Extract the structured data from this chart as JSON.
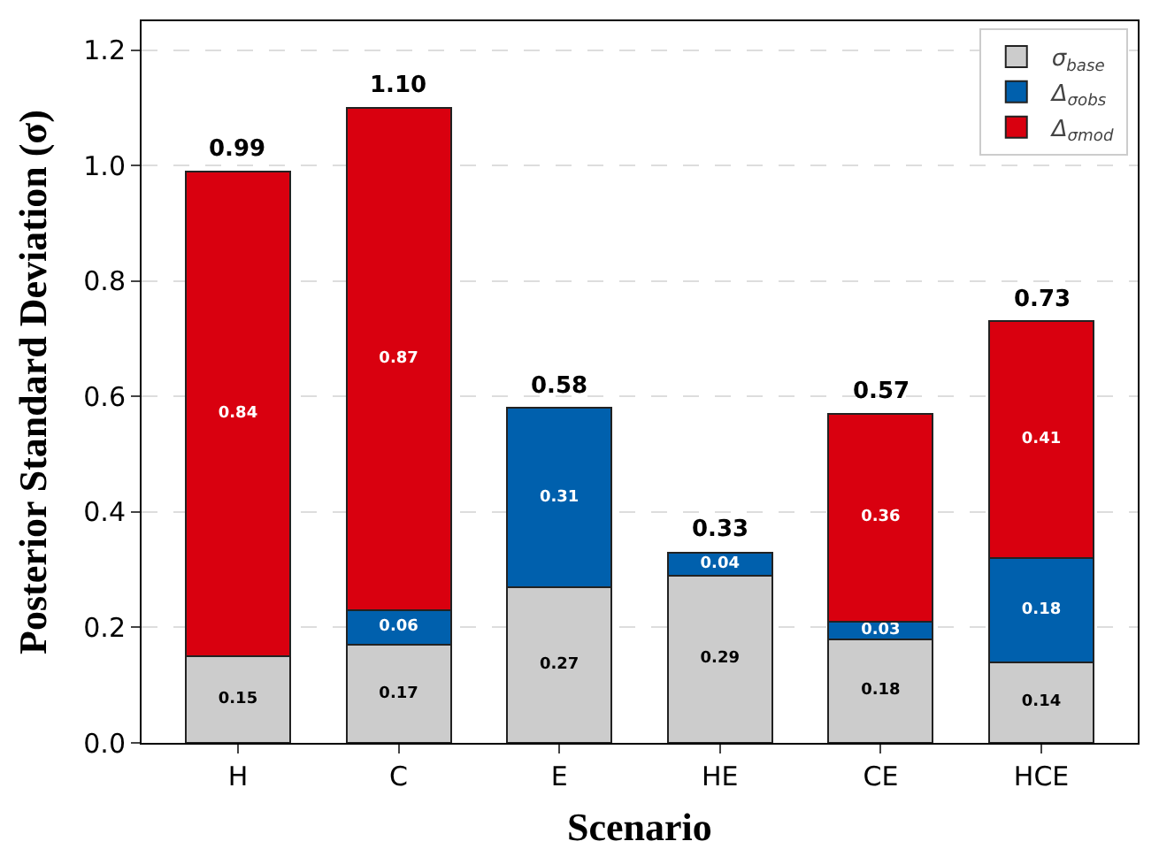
{
  "chart_data": {
    "type": "bar",
    "stacked": true,
    "xlabel": "Scenario",
    "ylabel": "Posterior Standard Deviation (σ)",
    "categories": [
      "H",
      "C",
      "E",
      "HE",
      "CE",
      "HCE"
    ],
    "series": [
      {
        "name": "σ$_{base}$",
        "color": "#cccccc",
        "values": [
          0.15,
          0.17,
          0.27,
          0.29,
          0.18,
          0.14
        ]
      },
      {
        "name": "Δ$_{σobs}$",
        "color": "#0060ad",
        "values": [
          null,
          0.06,
          0.31,
          0.04,
          0.03,
          0.18
        ]
      },
      {
        "name": "Δ$_{σmod}$",
        "color": "#d9000f",
        "values": [
          0.84,
          0.87,
          null,
          null,
          0.36,
          0.41
        ]
      }
    ],
    "data_labels": true,
    "totals": [
      "0.99",
      "1.10",
      "0.58",
      "0.33",
      "0.57",
      "0.73"
    ],
    "ylim": [
      0,
      1.25
    ],
    "yticks": [
      {
        "value": 0,
        "label": "0.0"
      },
      0.2,
      0.4,
      0.6,
      0.8,
      {
        "value": 1,
        "label": "1.0"
      },
      1.2
    ],
    "grid": "y",
    "legend": "top right"
  }
}
